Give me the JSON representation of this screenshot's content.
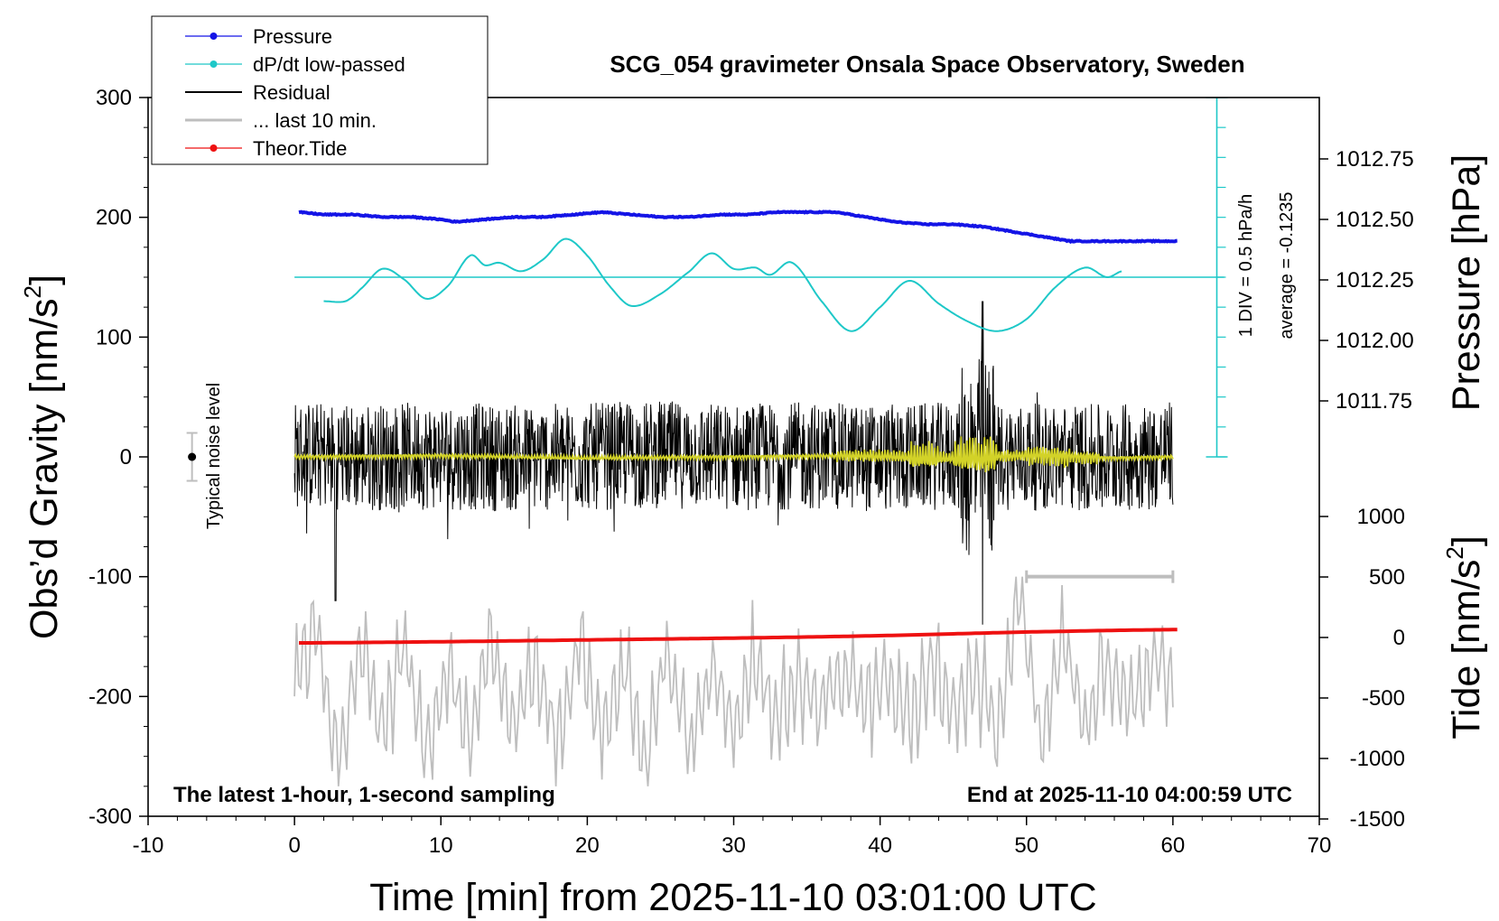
{
  "chart_data": {
    "type": "line",
    "title": "SCG_054 gravimeter Onsala Space Observatory, Sweden",
    "xlabel": "Time [min] from 2025-11-10 03:01:00 UTC",
    "ylabel_left": "Obs’d Gravity [nm/s",
    "ylabel_left_sup": "2",
    "ylabel_left_close": "]",
    "ylabel_right_top": "Pressure [hPa]",
    "ylabel_right_bottom": "Tide [nm/s",
    "ylabel_right_bottom_sup": "2",
    "ylabel_right_bottom_close": "]",
    "xlim": [
      -10,
      70
    ],
    "ylim_left": [
      -300,
      300
    ],
    "pressure_axis": {
      "ticks": [
        "1012.75",
        "1012.50",
        "1012.25",
        "1012.00",
        "1011.75"
      ],
      "values": [
        1012.75,
        1012.5,
        1012.25,
        1012.0,
        1011.75
      ]
    },
    "tide_axis": {
      "ticks": [
        "1000",
        "500",
        "0",
        "-500",
        "-1000",
        "-1500"
      ],
      "values": [
        1000,
        500,
        0,
        -500,
        -1000,
        -1500
      ]
    },
    "x_ticks": [
      "-10",
      "0",
      "10",
      "20",
      "30",
      "40",
      "50",
      "60",
      "70"
    ],
    "y_ticks_left": [
      "300",
      "200",
      "100",
      "0",
      "-100",
      "-200",
      "-300"
    ],
    "legend": {
      "placement": "top-left",
      "entries": [
        {
          "label": "Pressure",
          "color": "#1414e6"
        },
        {
          "label": "dP/dt low-passed",
          "color": "#1ec8c8"
        },
        {
          "label": "Residual",
          "color": "#000000"
        },
        {
          "label": "... last 10 min.",
          "color": "#bebebe"
        },
        {
          "label": "Theor.Tide",
          "color": "#ee1111"
        }
      ]
    },
    "annotations": {
      "bottom_left": "The latest 1-hour, 1-second sampling",
      "bottom_right": "End at 2025-11-10 04:00:59 UTC",
      "noise": "Typical noise level",
      "dpdt_scale": "1 DIV = 0.5 hPa/h",
      "dpdt_average": "average = -0.1235"
    },
    "series": [
      {
        "name": "Pressure",
        "axis": "pressure_hPa",
        "color": "#1414e6",
        "x": [
          0.3,
          2,
          4,
          6,
          8,
          10,
          11,
          13,
          15,
          17,
          19,
          21,
          23,
          25,
          27,
          29,
          31,
          33,
          35,
          37,
          39,
          41,
          43,
          45,
          47,
          49,
          51,
          53,
          55,
          57,
          59,
          60.3
        ],
        "y": [
          1012.53,
          1012.52,
          1012.52,
          1012.51,
          1012.51,
          1012.5,
          1012.49,
          1012.5,
          1012.51,
          1012.51,
          1012.52,
          1012.53,
          1012.52,
          1012.51,
          1012.51,
          1012.52,
          1012.52,
          1012.53,
          1012.53,
          1012.53,
          1012.51,
          1012.49,
          1012.48,
          1012.48,
          1012.47,
          1012.45,
          1012.43,
          1012.41,
          1012.41,
          1012.41,
          1012.41,
          1012.41
        ]
      },
      {
        "name": "dP/dt low-passed",
        "axis": "left_nm_s2",
        "color": "#1ec8c8",
        "reference_level": 150,
        "x": [
          2,
          3.5,
          4.5,
          6,
          7.5,
          9,
          10.5,
          12,
          13,
          14,
          15.5,
          17,
          18.5,
          20,
          21.5,
          23,
          25,
          27,
          28.5,
          30,
          31.5,
          32.5,
          34,
          36,
          38,
          40,
          42,
          44,
          46,
          48,
          50,
          52,
          54,
          55.5,
          56.5
        ],
        "y": [
          130,
          130,
          140,
          157,
          148,
          132,
          143,
          168,
          160,
          162,
          155,
          165,
          182,
          168,
          143,
          126,
          136,
          155,
          170,
          157,
          158,
          152,
          162,
          130,
          105,
          125,
          147,
          128,
          113,
          105,
          115,
          142,
          158,
          150,
          155
        ]
      },
      {
        "name": "Residual",
        "axis": "left_nm_s2",
        "color": "#000000",
        "x": [
          0,
          5,
          10,
          15,
          20,
          25,
          30,
          35,
          40,
          43,
          45,
          46,
          47,
          48,
          50,
          55,
          60
        ],
        "y": [
          2,
          0,
          1,
          -1,
          0,
          2,
          0,
          1,
          -1,
          0,
          1,
          -2,
          0,
          1,
          0,
          -1,
          2
        ]
      },
      {
        "name": "Residual band-passed",
        "axis": "left_nm_s2",
        "color": "#d2d228",
        "x": [
          0,
          10,
          20,
          30,
          38,
          42,
          44,
          47,
          50,
          53,
          56,
          60
        ],
        "y": [
          0,
          1,
          -1,
          0,
          1,
          0,
          -1,
          0,
          1,
          0,
          -1,
          0
        ]
      },
      {
        "name": "... last 10 min.",
        "axis": "left_nm_s2",
        "color": "#bebebe",
        "x": [
          0,
          1.5,
          3,
          4.5,
          6,
          7.5,
          9,
          10.5,
          12,
          13.5,
          15,
          16.5,
          18,
          19.5,
          21,
          22.5,
          24,
          25.5,
          27,
          28.5,
          30,
          31.5,
          33,
          34.5,
          36,
          37.5,
          39,
          40.5,
          42,
          43.5,
          45,
          46.5,
          48,
          49.5,
          51,
          52.5,
          54,
          55.5,
          57,
          58.5,
          60
        ],
        "y": [
          -195,
          -140,
          -260,
          -150,
          -235,
          -160,
          -250,
          -175,
          -240,
          -150,
          -230,
          -175,
          -240,
          -150,
          -235,
          -180,
          -250,
          -160,
          -240,
          -170,
          -230,
          -170,
          -215,
          -180,
          -205,
          -180,
          -210,
          -180,
          -230,
          -170,
          -215,
          -175,
          -230,
          -110,
          -240,
          -150,
          -230,
          -160,
          -210,
          -170,
          -180
        ]
      },
      {
        "name": "Theor.Tide",
        "axis": "tide_nm_s2",
        "color": "#ee1111",
        "x": [
          0.3,
          10,
          20,
          30,
          40,
          50,
          60.3
        ],
        "y": [
          -45,
          -35,
          -20,
          -5,
          15,
          45,
          65
        ]
      }
    ],
    "noise_bar": {
      "x": -7,
      "y": 0,
      "err": 20
    },
    "last10_bracket": {
      "x": [
        50,
        60
      ],
      "y": -100
    }
  }
}
